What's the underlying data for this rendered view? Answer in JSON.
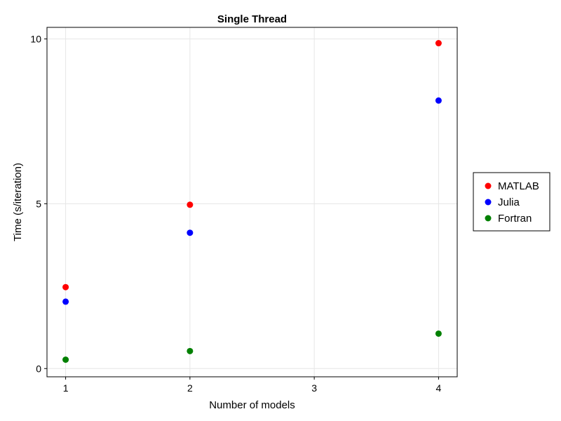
{
  "chart_data": {
    "type": "scatter",
    "title": "Single Thread",
    "xlabel": "Number of models",
    "ylabel": "Time (s/iteration)",
    "xlim": [
      0.85,
      4.15
    ],
    "ylim": [
      -0.25,
      10.35
    ],
    "x_ticks": [
      1,
      2,
      3,
      4
    ],
    "y_ticks": [
      0,
      5,
      10
    ],
    "x_tick_labels": [
      "1",
      "2",
      "3",
      "4"
    ],
    "y_tick_labels": [
      "0",
      "5",
      "10"
    ],
    "grid": true,
    "legend_position": "right",
    "series": [
      {
        "name": "MATLAB",
        "color": "#ff0000",
        "x": [
          1,
          2,
          4
        ],
        "y": [
          2.47,
          4.97,
          9.87
        ]
      },
      {
        "name": "Julia",
        "color": "#0000ff",
        "x": [
          1,
          2,
          4
        ],
        "y": [
          2.03,
          4.12,
          8.13
        ]
      },
      {
        "name": "Fortran",
        "color": "#008000",
        "x": [
          1,
          2,
          4
        ],
        "y": [
          0.27,
          0.53,
          1.06
        ]
      }
    ]
  }
}
